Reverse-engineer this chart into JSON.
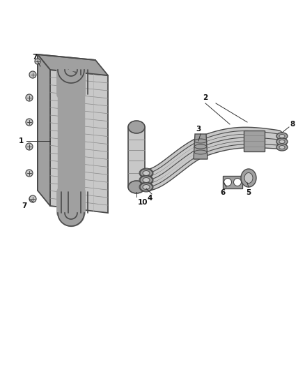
{
  "bg_color": "#ffffff",
  "fig_width": 4.38,
  "fig_height": 5.33,
  "dpi": 100,
  "line_color": "#4a4a4a",
  "fill_light": "#c8c8c8",
  "fill_mid": "#a0a0a0",
  "fill_dark": "#707070",
  "label_fontsize": 7.5
}
